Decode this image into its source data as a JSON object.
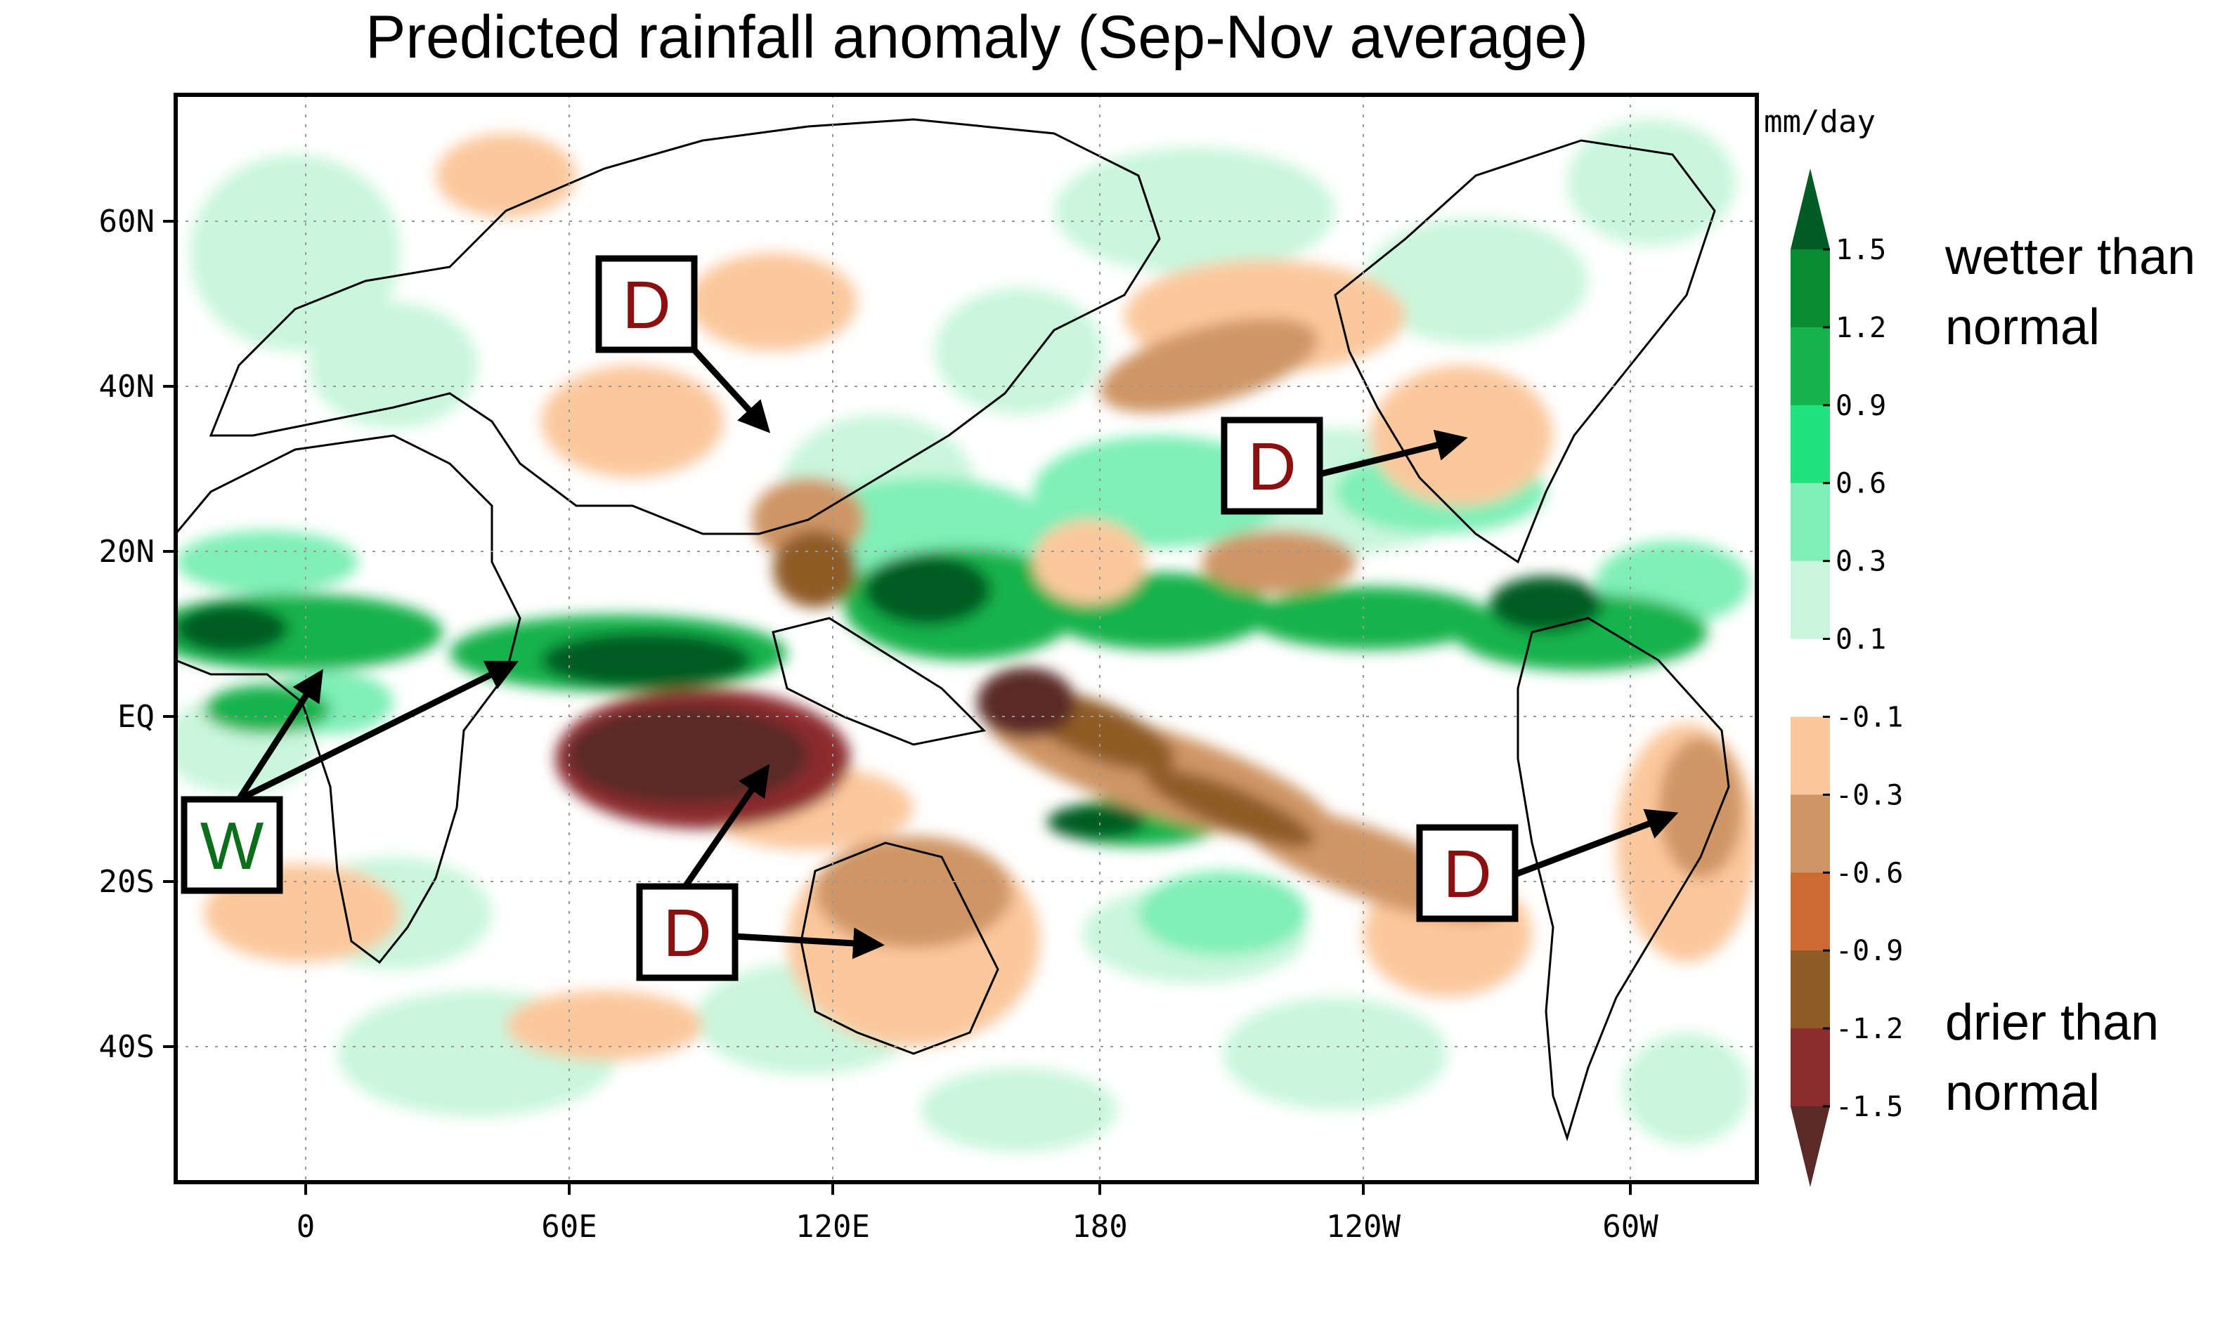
{
  "title": "Predicted rainfall anomaly (Sep-Nov average)",
  "map": {
    "x_ticks": [
      "0",
      "60E",
      "120E",
      "180",
      "120W",
      "60W"
    ],
    "y_ticks": [
      "60N",
      "40N",
      "20N",
      "EQ",
      "20S",
      "40S"
    ]
  },
  "colorbar": {
    "unit": "mm/day",
    "levels": [
      "1.5",
      "1.2",
      "0.9",
      "0.6",
      "0.3",
      "0.1",
      "-0.1",
      "-0.3",
      "-0.6",
      "-0.9",
      "-1.2",
      "-1.5"
    ],
    "colors": {
      "wet": [
        "#005c24",
        "#0b8a34",
        "#16b24c",
        "#1fe27c",
        "#7fefb7",
        "#c9f6dc"
      ],
      "neutral": "#ffffff",
      "dry": [
        "#fbc89d",
        "#cf9565",
        "#cd6a34",
        "#8f5c27",
        "#8c2c2f",
        "#5a2a26"
      ]
    },
    "wet_label_line1": "wetter than",
    "wet_label_line2": "normal",
    "dry_label_line1": "drier than",
    "dry_label_line2": "normal"
  },
  "annotations": [
    {
      "letter": "D",
      "meaning": "dry",
      "region": "East Asia"
    },
    {
      "letter": "D",
      "meaning": "dry",
      "region": "Southeastern USA"
    },
    {
      "letter": "W",
      "meaning": "wet",
      "region": "Equatorial Africa"
    },
    {
      "letter": "D",
      "meaning": "dry",
      "region": "Indonesia"
    },
    {
      "letter": "D",
      "meaning": "dry",
      "region": "Australia"
    },
    {
      "letter": "D",
      "meaning": "dry",
      "region": "Eastern Brazil"
    }
  ],
  "annotation_colors": {
    "dry": "#8c1010",
    "wet": "#0b6e1a"
  }
}
